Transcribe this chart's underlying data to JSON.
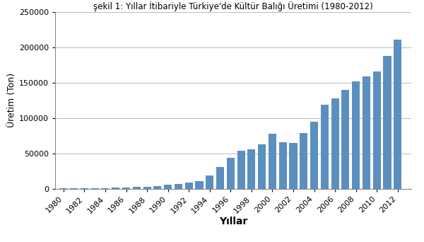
{
  "years": [
    1980,
    1981,
    1982,
    1983,
    1984,
    1985,
    1986,
    1987,
    1988,
    1989,
    1990,
    1991,
    1992,
    1993,
    1994,
    1995,
    1996,
    1997,
    1998,
    1999,
    2000,
    2001,
    2002,
    2003,
    2004,
    2005,
    2006,
    2007,
    2008,
    2009,
    2010,
    2011,
    2012
  ],
  "values": [
    300,
    400,
    500,
    800,
    1200,
    1800,
    2200,
    2800,
    3200,
    4000,
    5500,
    7000,
    8500,
    10500,
    19000,
    31000,
    44000,
    54000,
    56000,
    63000,
    78000,
    66000,
    65000,
    79000,
    95000,
    119000,
    128000,
    140000,
    152000,
    159000,
    166000,
    188000,
    211000
  ],
  "bar_color": "#5B8FBF",
  "xlabel": "Yıllar",
  "ylabel": "Üretim (Ton)",
  "title": "şekil 1: Yıllar İtibariyle Türkiye'de Kültür Balığı Üretimi (1980-2012)",
  "ylim": [
    0,
    250000
  ],
  "yticks": [
    0,
    50000,
    100000,
    150000,
    200000,
    250000
  ],
  "xtick_years": [
    1980,
    1982,
    1984,
    1986,
    1988,
    1990,
    1992,
    1994,
    1996,
    1998,
    2000,
    2002,
    2004,
    2006,
    2008,
    2010,
    2012
  ],
  "grid_color": "#BBBBBB",
  "background_color": "#FFFFFF",
  "title_fontsize": 8.5,
  "axis_label_fontsize": 10,
  "tick_fontsize": 8,
  "xlabel_fontsize": 10,
  "ylabel_fontsize": 9
}
